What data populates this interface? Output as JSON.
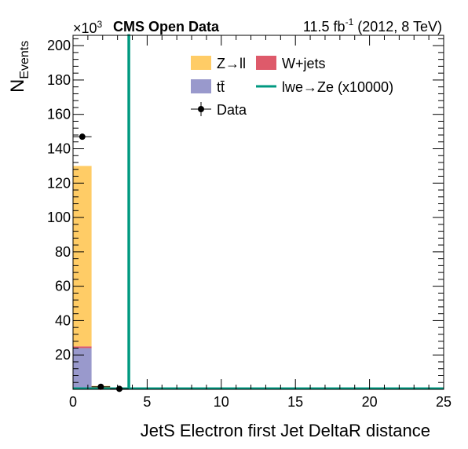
{
  "chart_data": {
    "type": "bar",
    "title_left": "CMS Open Data",
    "title_right": "11.5 fb",
    "title_right_sup": "-1",
    "title_right_tail": " (2012, 8 TeV)",
    "multiplier_base": "×10",
    "multiplier_exp": "3",
    "xlabel": "JetS Electron first Jet DeltaR distance",
    "ylabel_main": "N",
    "ylabel_sub": "Events",
    "xlim": [
      0,
      25
    ],
    "ylim": [
      0,
      206
    ],
    "x_ticks": [
      0,
      5,
      10,
      15,
      20,
      25
    ],
    "x_tick_labels": [
      "0",
      "5",
      "10",
      "15",
      "20",
      "25"
    ],
    "y_ticks": [
      20,
      40,
      60,
      80,
      100,
      120,
      140,
      160,
      180,
      200
    ],
    "y_tick_labels": [
      "20",
      "40",
      "60",
      "80",
      "100",
      "120",
      "140",
      "160",
      "180",
      "200"
    ],
    "bin_edges": [
      0,
      1.25,
      2.5,
      3.75,
      5,
      6.25,
      7.5,
      8.75,
      10,
      11.25,
      12.5,
      13.75,
      15,
      16.25,
      17.5,
      18.75,
      20,
      21.25,
      22.5,
      23.75,
      25
    ],
    "series": [
      {
        "name": "tt̄",
        "color": "#9999cc",
        "values": [
          24,
          0.4,
          0.1,
          0,
          0,
          0,
          0,
          0,
          0,
          0,
          0,
          0,
          0,
          0,
          0,
          0,
          0,
          0,
          0,
          0
        ]
      },
      {
        "name": "W+jets",
        "color": "#de5a6a",
        "values": [
          1,
          0.1,
          0,
          0,
          0,
          0,
          0,
          0,
          0,
          0,
          0,
          0,
          0,
          0,
          0,
          0,
          0,
          0,
          0,
          0
        ]
      },
      {
        "name": "Z→ll",
        "color": "#ffcc66",
        "values": [
          105,
          1.5,
          0.3,
          0,
          0,
          0,
          0,
          0,
          0,
          0,
          0,
          0,
          0,
          0,
          0,
          0,
          0,
          0,
          0,
          0
        ]
      }
    ],
    "signal": {
      "name": "lwe→Ze (x10000)",
      "color": "#009980",
      "spike_x": 3.75,
      "spike_top": 206
    },
    "data_points": {
      "name": "Data",
      "x": [
        0.625,
        1.875,
        3.125
      ],
      "y": [
        147,
        1.5,
        0.3
      ],
      "yerr": [
        0.4,
        0.1,
        0.05
      ],
      "xerr": 0.625
    },
    "legend": {
      "placement": "top-right",
      "entries": [
        {
          "label": "Z→ll",
          "kind": "box",
          "color": "#ffcc66"
        },
        {
          "label": "W+jets",
          "kind": "box",
          "color": "#de5a6a"
        },
        {
          "label": "tt̄",
          "kind": "box",
          "color": "#9999cc"
        },
        {
          "label": "lwe→Ze (x10000)",
          "kind": "line",
          "color": "#009980"
        },
        {
          "label": "Data",
          "kind": "marker",
          "color": "#000000"
        }
      ]
    }
  }
}
